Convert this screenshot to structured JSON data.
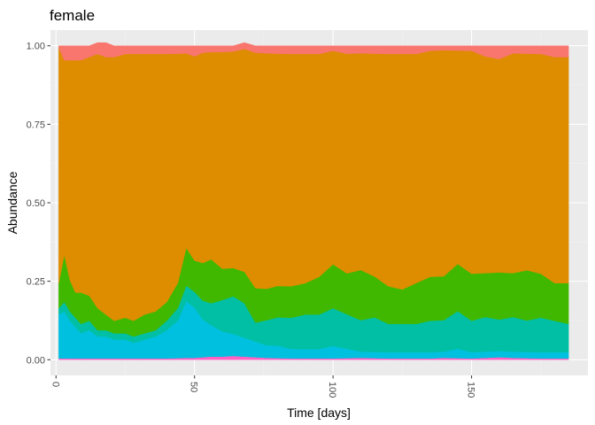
{
  "chart_data": {
    "type": "area",
    "title": "female",
    "xlabel": "Time [days]",
    "ylabel": "Abundance",
    "xlim": [
      -2,
      192
    ],
    "ylim": [
      -0.05,
      1.05
    ],
    "x_ticks": [
      0,
      50,
      100,
      150
    ],
    "y_ticks": [
      0.0,
      0.25,
      0.5,
      0.75,
      1.0
    ],
    "x_tick_labels": [
      "0",
      "50",
      "100",
      "150"
    ],
    "y_tick_labels": [
      "0.00",
      "0.25",
      "0.50",
      "0.75",
      "1.00"
    ],
    "grid": true,
    "stacked": true,
    "legend": "none",
    "colors": {
      "panel_background": "#ebebeb",
      "grid_major": "#ffffff",
      "grid_minor": "#f2f2f2",
      "tick": "#333333"
    },
    "x": [
      1,
      3,
      5,
      7,
      9,
      12,
      15,
      18,
      21,
      25,
      28,
      32,
      36,
      40,
      44,
      47,
      50,
      53,
      56,
      60,
      64,
      68,
      72,
      76,
      80,
      85,
      90,
      95,
      100,
      105,
      110,
      115,
      120,
      125,
      130,
      135,
      140,
      145,
      150,
      155,
      160,
      165,
      170,
      175,
      180,
      185
    ],
    "series": [
      {
        "color": "#ff61c3",
        "values": [
          0.004,
          0.004,
          0.004,
          0.004,
          0.004,
          0.004,
          0.004,
          0.004,
          0.004,
          0.004,
          0.004,
          0.004,
          0.004,
          0.004,
          0.005,
          0.006,
          0.006,
          0.008,
          0.01,
          0.01,
          0.012,
          0.01,
          0.008,
          0.006,
          0.005,
          0.004,
          0.004,
          0.004,
          0.004,
          0.005,
          0.006,
          0.005,
          0.004,
          0.004,
          0.004,
          0.004,
          0.006,
          0.005,
          0.004,
          0.006,
          0.008,
          0.006,
          0.005,
          0.004,
          0.004,
          0.004
        ]
      },
      {
        "color": "#00c0e0",
        "values": [
          0.14,
          0.15,
          0.12,
          0.1,
          0.08,
          0.09,
          0.07,
          0.07,
          0.06,
          0.06,
          0.05,
          0.06,
          0.07,
          0.09,
          0.12,
          0.18,
          0.16,
          0.12,
          0.1,
          0.08,
          0.07,
          0.06,
          0.05,
          0.04,
          0.04,
          0.03,
          0.03,
          0.03,
          0.04,
          0.03,
          0.02,
          0.02,
          0.02,
          0.02,
          0.02,
          0.02,
          0.02,
          0.03,
          0.02,
          0.02,
          0.02,
          0.02,
          0.02,
          0.02,
          0.02,
          0.02
        ]
      },
      {
        "color": "#00bfa4",
        "values": [
          0.02,
          0.03,
          0.03,
          0.03,
          0.03,
          0.03,
          0.02,
          0.02,
          0.02,
          0.02,
          0.02,
          0.02,
          0.02,
          0.03,
          0.04,
          0.05,
          0.05,
          0.06,
          0.07,
          0.1,
          0.12,
          0.11,
          0.06,
          0.08,
          0.09,
          0.1,
          0.11,
          0.11,
          0.12,
          0.11,
          0.1,
          0.11,
          0.09,
          0.09,
          0.09,
          0.1,
          0.1,
          0.12,
          0.1,
          0.11,
          0.1,
          0.11,
          0.1,
          0.11,
          0.1,
          0.09
        ]
      },
      {
        "color": "#40b800",
        "values": [
          0.08,
          0.15,
          0.1,
          0.08,
          0.1,
          0.08,
          0.07,
          0.05,
          0.04,
          0.05,
          0.05,
          0.06,
          0.06,
          0.06,
          0.08,
          0.12,
          0.1,
          0.12,
          0.14,
          0.1,
          0.09,
          0.1,
          0.11,
          0.1,
          0.1,
          0.1,
          0.1,
          0.12,
          0.14,
          0.13,
          0.16,
          0.13,
          0.12,
          0.11,
          0.13,
          0.14,
          0.14,
          0.15,
          0.15,
          0.14,
          0.15,
          0.14,
          0.16,
          0.14,
          0.12,
          0.13
        ]
      },
      {
        "color": "#de8c00",
        "values": [
          0.75,
          0.62,
          0.7,
          0.74,
          0.74,
          0.76,
          0.81,
          0.82,
          0.84,
          0.84,
          0.85,
          0.83,
          0.82,
          0.79,
          0.73,
          0.62,
          0.65,
          0.67,
          0.66,
          0.69,
          0.69,
          0.71,
          0.75,
          0.75,
          0.74,
          0.74,
          0.73,
          0.71,
          0.68,
          0.7,
          0.69,
          0.71,
          0.74,
          0.75,
          0.73,
          0.72,
          0.72,
          0.68,
          0.71,
          0.69,
          0.68,
          0.7,
          0.69,
          0.7,
          0.72,
          0.72
        ]
      },
      {
        "color": "#f8766d",
        "values": [
          0.006,
          0.046,
          0.046,
          0.046,
          0.046,
          0.036,
          0.036,
          0.046,
          0.036,
          0.026,
          0.026,
          0.026,
          0.026,
          0.026,
          0.025,
          0.024,
          0.034,
          0.022,
          0.02,
          0.02,
          0.018,
          0.02,
          0.022,
          0.024,
          0.025,
          0.026,
          0.026,
          0.026,
          0.016,
          0.025,
          0.024,
          0.025,
          0.026,
          0.026,
          0.026,
          0.016,
          0.014,
          0.015,
          0.016,
          0.034,
          0.042,
          0.024,
          0.025,
          0.026,
          0.036,
          0.036
        ]
      }
    ]
  }
}
